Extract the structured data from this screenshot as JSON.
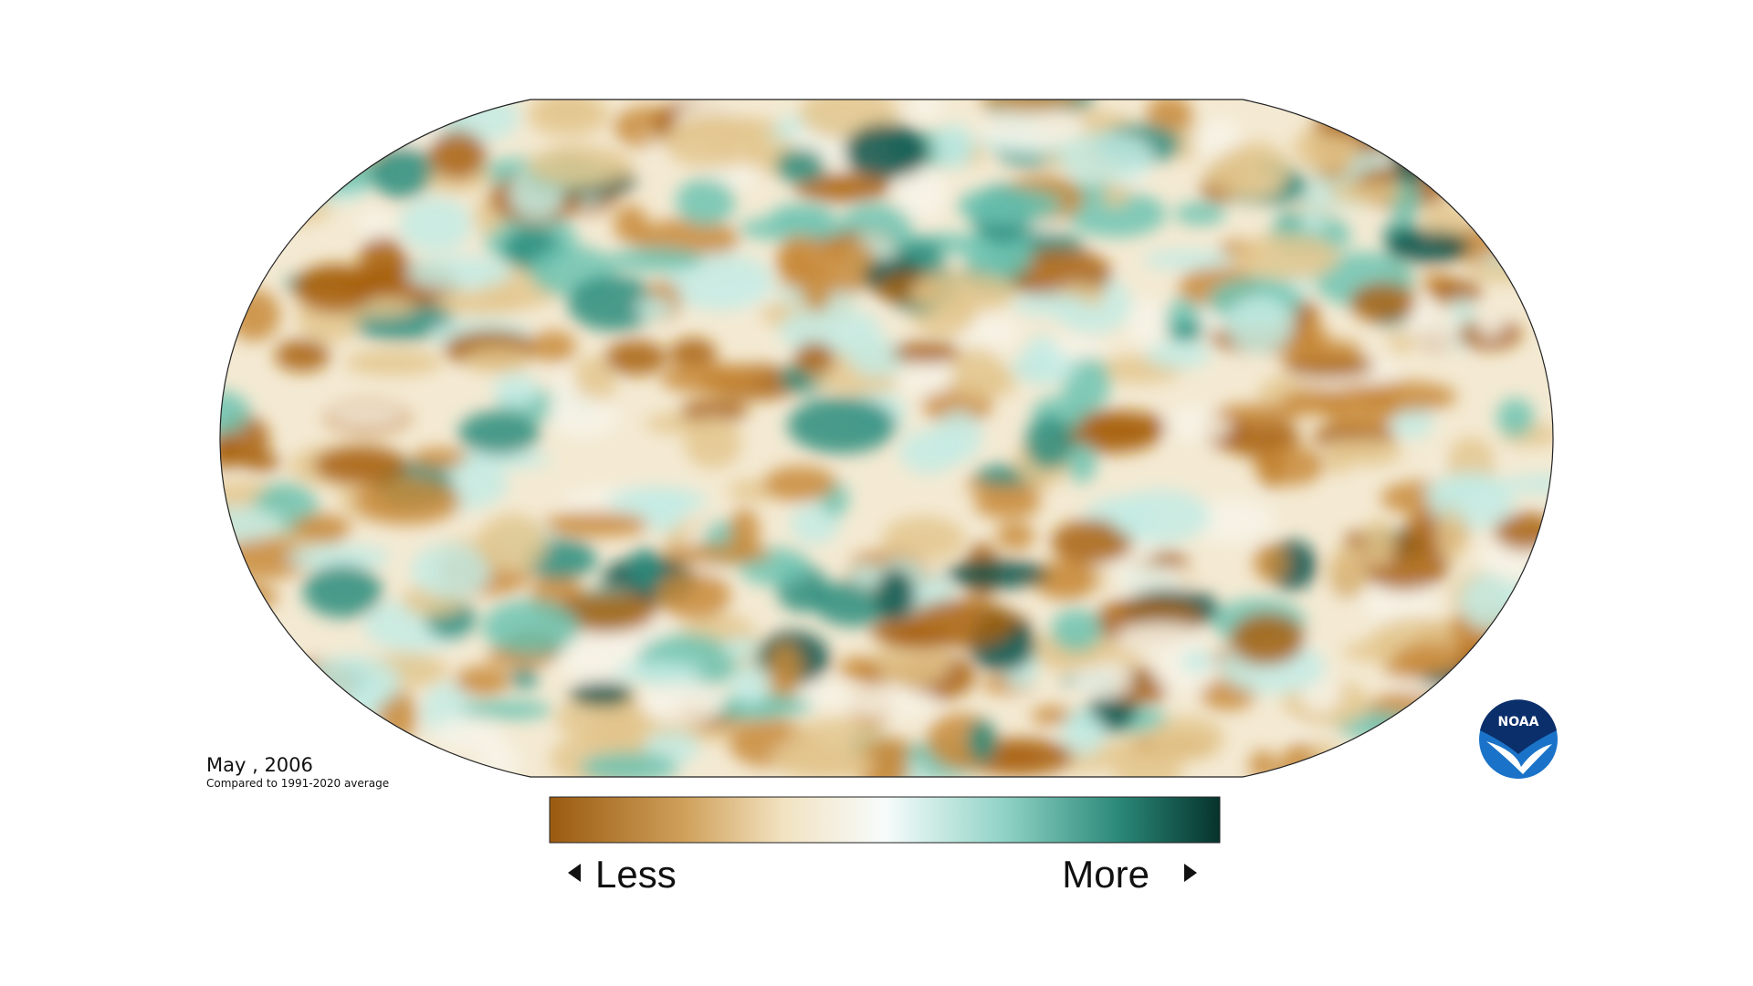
{
  "map": {
    "date": "May , 2006",
    "baseline": "Compared to 1991-2020 average"
  },
  "legend": {
    "low": "Less",
    "high": "More"
  },
  "logo": {
    "text": "NOAA"
  }
}
